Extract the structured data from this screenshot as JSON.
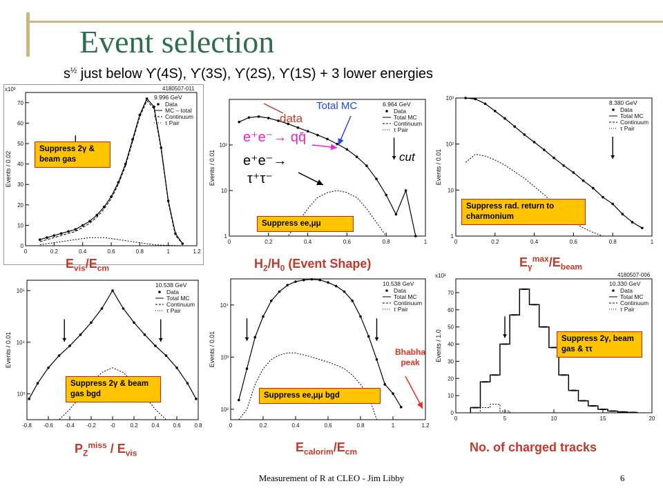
{
  "slide": {
    "title": "Event selection",
    "subtitle_prefix": "s",
    "subtitle_exp": "½",
    "subtitle_rest": " just below ϒ(4S), ϒ(3S), ϒ(2S), ϒ(1S) + 3 lower energies",
    "footer": "Measurement of R at CLEO - Jim Libby",
    "page": "6"
  },
  "colors": {
    "title": "#2e6e4e",
    "caption": "#c0392b",
    "note_bg": "#ffc400",
    "note_border": "#cc2200",
    "annotation_blue": "#2244ee",
    "annotation_magenta": "#ee22cc"
  },
  "panels": [
    {
      "id": "evis",
      "caption_main": "E",
      "caption_sub": "vis",
      "caption_mid": "/E",
      "caption_sub2": "cm",
      "note": "Suppress 2γ & beam gas",
      "chart_data": {
        "type": "line",
        "scale": "linear",
        "energy": "9.996 GeV",
        "run_id": "4180507-011",
        "ylabel": "Events / 0.02",
        "yscale_label": "x10³",
        "xlim": [
          0,
          1.2
        ],
        "ylim": [
          0,
          75
        ],
        "xticks": [
          "0",
          "0.2",
          "0.4",
          "0.6",
          "0.8",
          "1",
          "1.2"
        ],
        "yticks": [
          "0",
          "10",
          "20",
          "30",
          "40",
          "50",
          "60",
          "70"
        ],
        "legend": [
          "Data",
          "MC – total",
          "Continuum",
          "τ Pair"
        ],
        "cut": 0.35,
        "x": [
          0.1,
          0.15,
          0.2,
          0.25,
          0.3,
          0.35,
          0.4,
          0.45,
          0.5,
          0.55,
          0.6,
          0.65,
          0.7,
          0.75,
          0.8,
          0.85,
          0.9,
          0.95,
          1.0,
          1.05,
          1.1
        ],
        "series": [
          {
            "name": "Data",
            "values": [
              3,
              4,
              5,
              6,
              7,
              8,
              10,
              12,
              15,
              19,
              24,
              31,
              40,
              52,
              64,
              72,
              68,
              48,
              22,
              6,
              1
            ]
          },
          {
            "name": "MC – total",
            "values": [
              2,
              3,
              4,
              5,
              6,
              7,
              9,
              11,
              14,
              18,
              23,
              30,
              39,
              51,
              63,
              71,
              67,
              47,
              21,
              5,
              1
            ]
          },
          {
            "name": "τ Pair",
            "values": [
              0.5,
              1,
              1.5,
              2,
              2.5,
              3,
              3.5,
              4,
              4,
              4,
              3.5,
              3,
              2.5,
              2,
              1.5,
              1,
              0.5,
              0.3,
              0.2,
              0.1,
              0
            ]
          }
        ]
      }
    },
    {
      "id": "h2h0",
      "caption_main": "H",
      "caption_sub": "2",
      "caption_mid": "/H",
      "caption_sub2": "0",
      "caption_tail": " (Event Shape)",
      "note": "Suppress ee,μμ",
      "chart_data": {
        "type": "line",
        "scale": "log",
        "energy": "6.964 GeV",
        "ylabel": "Events / 0.01",
        "xlim": [
          0,
          1
        ],
        "ylim_log": [
          0,
          3
        ],
        "xticks": [
          "0",
          "0.2",
          "0.4",
          "0.6",
          "0.8",
          "1"
        ],
        "yticks": [
          "1",
          "10",
          "10²"
        ],
        "legend": [
          "Data",
          "Total MC",
          "Continuum",
          "τ Pair"
        ],
        "cut": 0.84,
        "x": [
          0.05,
          0.1,
          0.15,
          0.2,
          0.25,
          0.3,
          0.35,
          0.4,
          0.45,
          0.5,
          0.55,
          0.6,
          0.65,
          0.7,
          0.75,
          0.8,
          0.85,
          0.9,
          0.95
        ],
        "series": [
          {
            "name": "Data",
            "values": [
              320,
              400,
              420,
              390,
              340,
              290,
              240,
              200,
              165,
              135,
              105,
              80,
              55,
              35,
              18,
              8,
              3,
              10,
              1
            ]
          },
          {
            "name": "τ Pair",
            "values": [
              0,
              0,
              0,
              0,
              0,
              1,
              2,
              4,
              7,
              9,
              10,
              9,
              7,
              4,
              2,
              1,
              0,
              0,
              0
            ]
          }
        ]
      },
      "labels": {
        "data": "data",
        "total_mc": "Total MC",
        "qq": "e⁺e⁻→ qq̄",
        "tautau_1": "e⁺e⁻→",
        "tautau_2": "τ⁺τ⁻",
        "cut": "cut"
      }
    },
    {
      "id": "egamma",
      "caption_main": "E",
      "caption_sub": "γ",
      "caption_sup": "max",
      "caption_mid": "/E",
      "caption_sub2": "beam",
      "note": "Suppress rad. return to charmonium",
      "chart_data": {
        "type": "line",
        "scale": "log",
        "energy": "8.380 GeV",
        "ylabel": "Events / 0.01",
        "xlim": [
          0,
          1
        ],
        "ylim_log": [
          0,
          3
        ],
        "xticks": [
          "0",
          "0.2",
          "0.4",
          "0.6",
          "0.8",
          "1"
        ],
        "yticks": [
          "1",
          "10",
          "10²",
          "10³"
        ],
        "legend": [
          "Data",
          "Total MC",
          "Continuum",
          "τ Pair"
        ],
        "cut": 0.8,
        "x": [
          0.05,
          0.1,
          0.15,
          0.2,
          0.25,
          0.3,
          0.35,
          0.4,
          0.45,
          0.5,
          0.55,
          0.6,
          0.65,
          0.7,
          0.75,
          0.8,
          0.85,
          0.9,
          0.95
        ],
        "series": [
          {
            "name": "Data",
            "values": [
              1000,
              950,
              750,
              520,
              360,
              240,
              160,
              110,
              75,
              50,
              34,
              24,
              16,
              11,
              7,
              5,
              3,
              2,
              1.5
            ]
          },
          {
            "name": "τ Pair",
            "values": [
              40,
              60,
              55,
              45,
              35,
              25,
              18,
              12,
              8,
              5,
              3,
              2,
              1.5,
              1.2,
              1,
              0,
              0,
              0,
              0
            ]
          }
        ]
      }
    },
    {
      "id": "pz",
      "caption_main": "P",
      "caption_sub": "Z",
      "caption_sup": "miss",
      "caption_mid": " / E",
      "caption_sub2": "vis",
      "note": "Suppress 2γ & beam gas bgd",
      "chart_data": {
        "type": "line",
        "scale": "log",
        "energy": "10.538 GeV",
        "ylabel": "Events / 0.01",
        "xlim": [
          -0.8,
          0.8
        ],
        "ylim_log": [
          2.5,
          5.2
        ],
        "xticks": [
          "-0.8",
          "-0.6",
          "-0.4",
          "-0.2",
          "-0",
          "0.2",
          "0.4",
          "0.6",
          "0.8"
        ],
        "yticks": [
          "10³",
          "10⁴",
          "10⁵"
        ],
        "legend": [
          "Data",
          "Total MC",
          "Continuum",
          "τ Pair"
        ],
        "cuts": [
          -0.45,
          0.45
        ],
        "x": [
          -0.78,
          -0.7,
          -0.6,
          -0.5,
          -0.4,
          -0.3,
          -0.2,
          -0.1,
          0,
          0.1,
          0.2,
          0.3,
          0.4,
          0.5,
          0.6,
          0.7,
          0.78
        ],
        "series": [
          {
            "name": "Data",
            "values": [
              800,
              1600,
              3200,
              5500,
              8500,
              14000,
              24000,
              45000,
              100000,
              45000,
              24000,
              14000,
              8500,
              5500,
              3200,
              1600,
              800
            ]
          },
          {
            "name": "τ Pair",
            "values": [
              0,
              0,
              0,
              0,
              500,
              900,
              1600,
              2600,
              3200,
              2600,
              1600,
              900,
              500,
              0,
              0,
              0,
              0
            ]
          }
        ]
      }
    },
    {
      "id": "ecal",
      "caption_main": "E",
      "caption_sub": "calorim",
      "caption_mid": "/E",
      "caption_sub2": "cm",
      "note": "Suppress ee,μμ bgd",
      "chart_data": {
        "type": "line",
        "scale": "log",
        "energy": "10.538 GeV",
        "ylabel": "Events / 0.01",
        "xlim": [
          0,
          1.2
        ],
        "ylim_log": [
          1.8,
          4.5
        ],
        "xticks": [
          "0",
          "0.2",
          "0.4",
          "0.6",
          "0.8",
          "1",
          "1.2"
        ],
        "yticks": [
          "10²",
          "10³",
          "10⁴"
        ],
        "legend": [
          "Data",
          "Total MC",
          "Continuum",
          "τ Pair"
        ],
        "cuts": [
          0.1,
          0.9
        ],
        "x": [
          0.05,
          0.1,
          0.15,
          0.2,
          0.25,
          0.3,
          0.35,
          0.4,
          0.45,
          0.5,
          0.55,
          0.6,
          0.65,
          0.7,
          0.75,
          0.8,
          0.85,
          0.9,
          0.95,
          1.0,
          1.05
        ],
        "series": [
          {
            "name": "Data",
            "values": [
              150,
              600,
              2400,
              6000,
              12000,
              18000,
              24000,
              28000,
              30000,
              31000,
              30000,
              27000,
              23000,
              18000,
              12000,
              6000,
              2500,
              900,
              300,
              200,
              110
            ]
          },
          {
            "name": "τ Pair",
            "values": [
              0,
              100,
              300,
              600,
              900,
              1100,
              1200,
              1200,
              1100,
              1000,
              900,
              800,
              700,
              600,
              450,
              300,
              180,
              0,
              0,
              0,
              0
            ]
          }
        ]
      },
      "labels": {
        "bhabha": "Bhabha peak"
      }
    },
    {
      "id": "ntrk",
      "caption_main": "No. of charged tracks",
      "note": "Suppress 2γ, beam gas & ττ",
      "chart_data": {
        "type": "bar",
        "scale": "linear",
        "energy": "10.330 GeV",
        "run_id": "4180507-006",
        "ylabel": "Events / 1.0",
        "yscale_label": "x10³",
        "xlim": [
          0,
          20
        ],
        "ylim": [
          0,
          78
        ],
        "xticks": [
          "0",
          "5",
          "10",
          "15",
          "20"
        ],
        "yticks": [
          "0",
          "10",
          "20",
          "30",
          "40",
          "50",
          "60",
          "70"
        ],
        "legend": [
          "Data",
          "Total MC",
          "Continuum",
          "τ Pair"
        ],
        "cut": 5,
        "categories": [
          2,
          3,
          4,
          5,
          6,
          7,
          8,
          9,
          10,
          11,
          12,
          13,
          14,
          15,
          16,
          17,
          18
        ],
        "series": [
          {
            "name": "Data",
            "values": [
              3,
              18,
              22,
              40,
              57,
              72,
              63,
              50,
              38,
              22,
              13,
              7,
              4,
              2,
              1,
              0.5,
              0.2
            ]
          },
          {
            "name": "τ Pair",
            "values": [
              0,
              3,
              5,
              1,
              0,
              0,
              0,
              0,
              0,
              0,
              0,
              0,
              0,
              0,
              0,
              0,
              0
            ]
          }
        ]
      }
    }
  ]
}
